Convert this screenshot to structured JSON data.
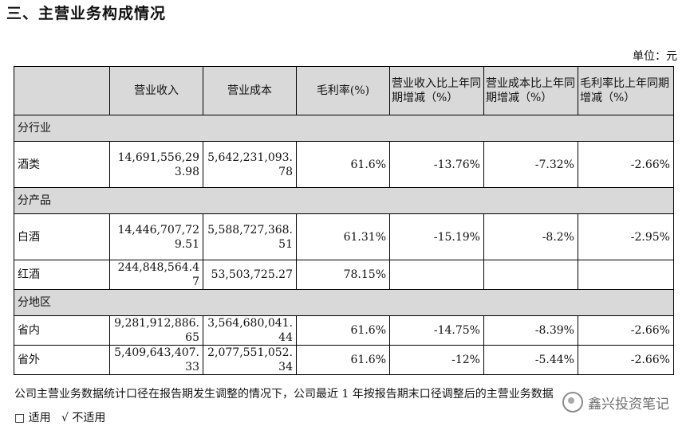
{
  "title": "三、主营业务构成情况",
  "unit": "单位：元",
  "table": {
    "headers": [
      "",
      "营业收入",
      "营业成本",
      "毛利率(%)",
      "营业收入比上年同期增减（%）",
      "营业成本比上年同期增减（%）",
      "毛利率比上年同期增减（%）"
    ],
    "sections": [
      {
        "name": "分行业",
        "rows": [
          {
            "label": "酒类",
            "revenue": "14,691,556,293.98",
            "cost": "5,642,231,093.78",
            "margin": "61.6%",
            "rev_change": "-13.76%",
            "cost_change": "-7.32%",
            "margin_change": "-2.66%"
          }
        ]
      },
      {
        "name": "分产品",
        "rows": [
          {
            "label": "白酒",
            "revenue": "14,446,707,729.51",
            "cost": "5,588,727,368.51",
            "margin": "61.31%",
            "rev_change": "-15.19%",
            "cost_change": "-8.2%",
            "margin_change": "-2.95%"
          },
          {
            "label": "红酒",
            "revenue": "244,848,564.47",
            "cost": "53,503,725.27",
            "margin": "78.15%",
            "rev_change": "",
            "cost_change": "",
            "margin_change": ""
          }
        ]
      },
      {
        "name": "分地区",
        "rows": [
          {
            "label": "省内",
            "revenue": "9,281,912,886.65",
            "cost": "3,564,680,041.44",
            "margin": "61.6%",
            "rev_change": "-14.75%",
            "cost_change": "-8.39%",
            "margin_change": "-2.66%"
          },
          {
            "label": "省外",
            "revenue": "5,409,643,407.33",
            "cost": "2,077,551,052.34",
            "margin": "61.6%",
            "rev_change": "-12%",
            "cost_change": "-5.44%",
            "margin_change": "-2.66%"
          }
        ]
      }
    ]
  },
  "note": "公司主营业务数据统计口径在报告期发生调整的情况下，公司最近 1 年按报告期末口径调整后的主营业务数据",
  "applicability": {
    "applicable": "□ 适用",
    "not_applicable": "√ 不适用"
  },
  "watermark": "鑫兴投资笔记"
}
